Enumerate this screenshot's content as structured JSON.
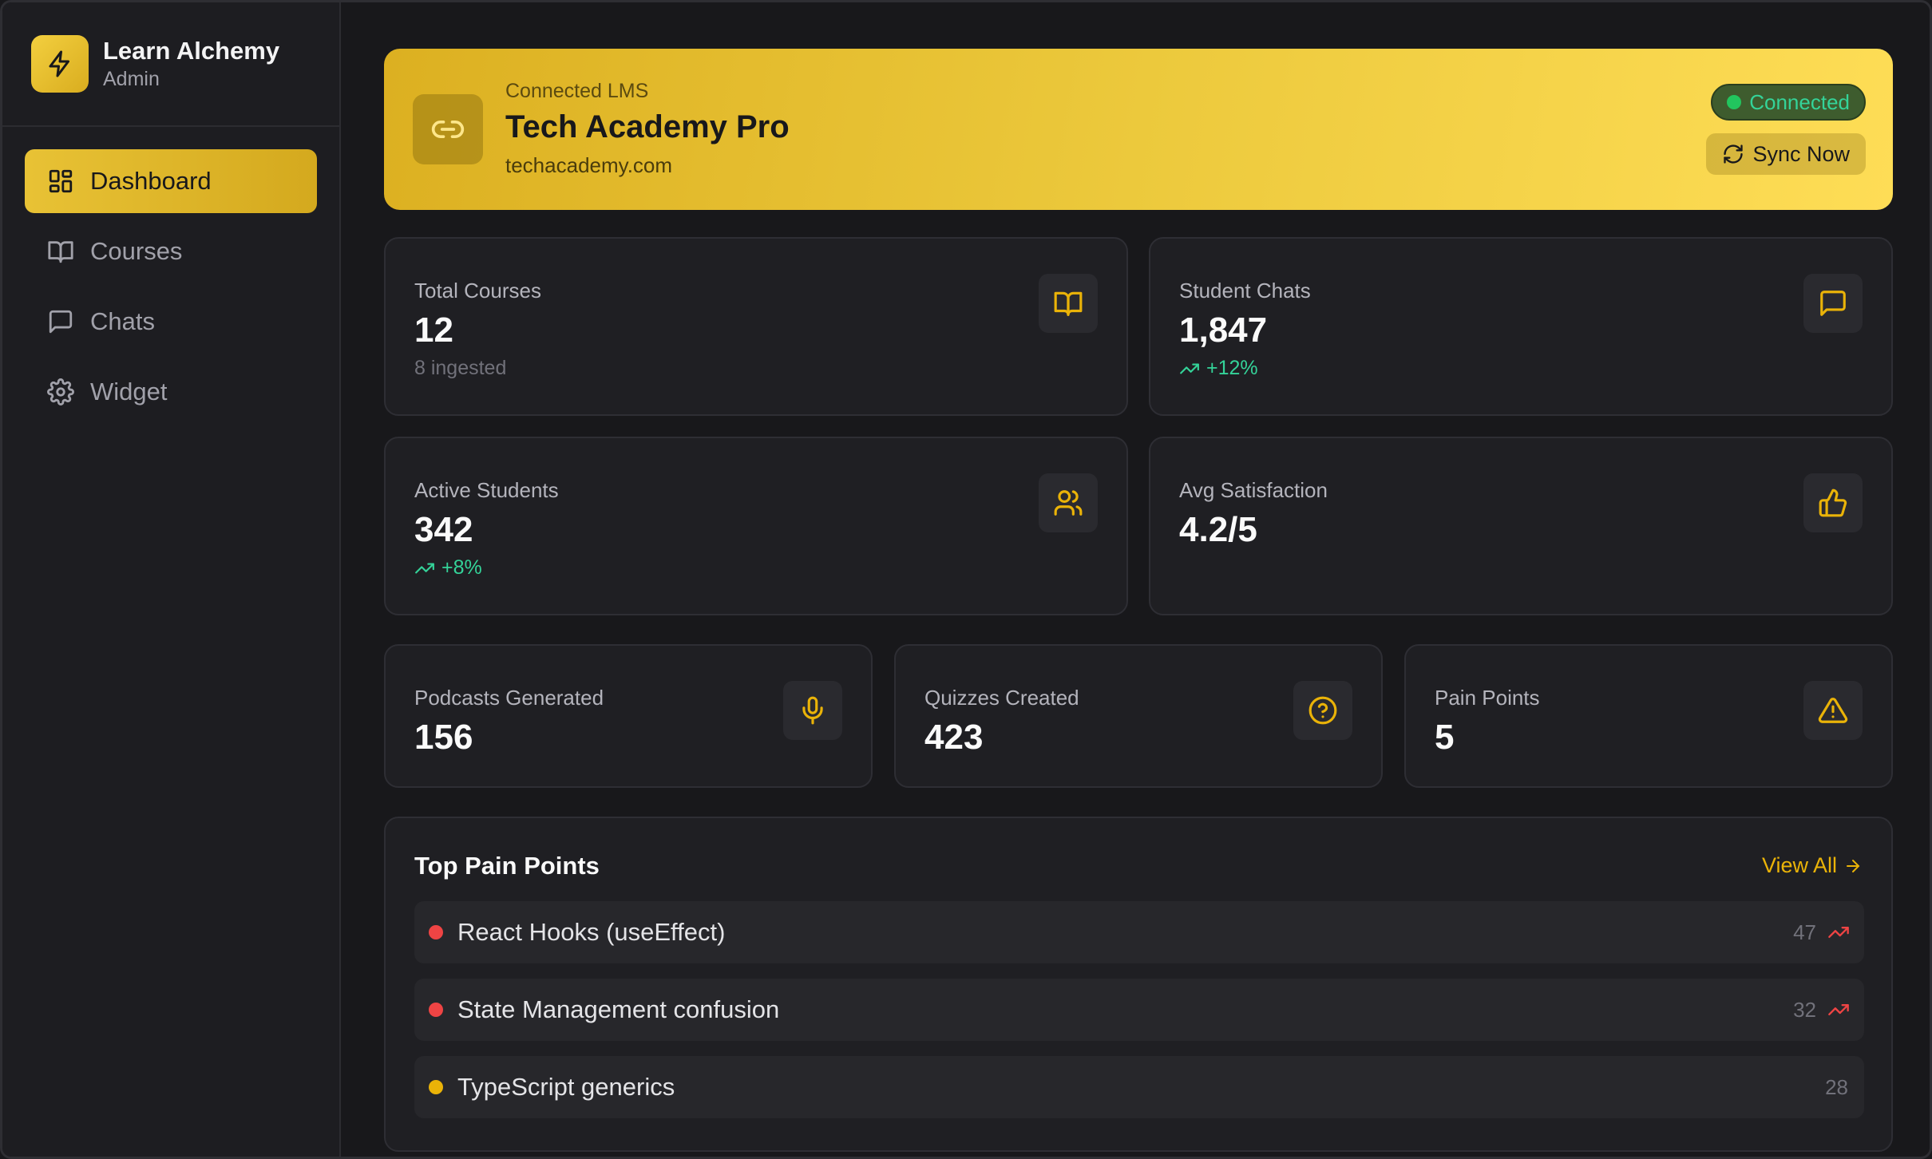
{
  "sidebar": {
    "brand_name": "Learn Alchemy",
    "brand_role": "Admin",
    "items": [
      {
        "label": "Dashboard",
        "icon": "dashboard-icon",
        "active": true
      },
      {
        "label": "Courses",
        "icon": "book-open-icon"
      },
      {
        "label": "Chats",
        "icon": "message-square-icon"
      },
      {
        "label": "Widget",
        "icon": "gear-icon"
      }
    ]
  },
  "banner": {
    "label": "Connected LMS",
    "title": "Tech Academy Pro",
    "url": "techacademy.com",
    "status": "Connected",
    "sync_label": "Sync Now"
  },
  "stats": [
    {
      "label": "Total Courses",
      "value": "12",
      "sub": "8 ingested",
      "icon": "book-open-icon"
    },
    {
      "label": "Student Chats",
      "value": "1,847",
      "sub": "+12%",
      "icon": "message-square-icon"
    },
    {
      "label": "Active Students",
      "value": "342",
      "sub": "+8%",
      "icon": "users-icon"
    },
    {
      "label": "Avg Satisfaction",
      "value": "4.2/5",
      "icon": "thumbs-up-icon"
    },
    {
      "label": "Podcasts Generated",
      "value": "156",
      "icon": "microphone-icon"
    },
    {
      "label": "Quizzes Created",
      "value": "423",
      "icon": "help-circle-icon"
    },
    {
      "label": "Pain Points",
      "value": "5",
      "icon": "alert-triangle-icon"
    }
  ],
  "pain_points": {
    "title": "Top Pain Points",
    "view_all": "View All",
    "items": [
      {
        "text": "React Hooks (useEffect)",
        "count": "47",
        "color": "#ef4444",
        "trending": true
      },
      {
        "text": "State Management confusion",
        "count": "32",
        "color": "#ef4444",
        "trending": true
      },
      {
        "text": "TypeScript generics",
        "count": "28",
        "color": "#eab308",
        "trending": false
      }
    ]
  },
  "colors": {
    "accent": "#eab308",
    "positive": "#34d399",
    "negative": "#ef4444"
  }
}
